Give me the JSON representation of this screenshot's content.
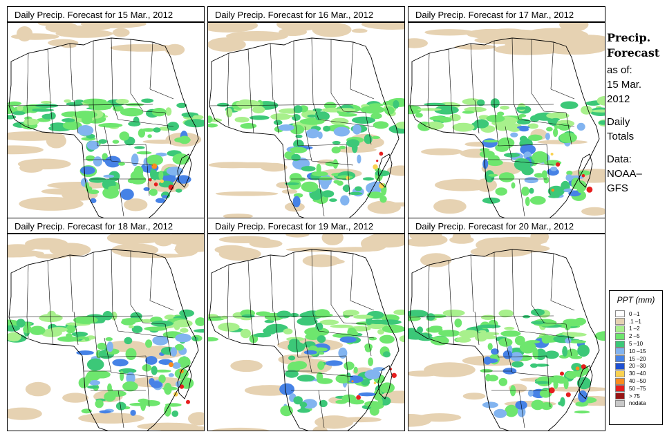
{
  "panels": [
    {
      "title": "Daily Precip. Forecast for  15 Mar., 2012"
    },
    {
      "title": "Daily Precip. Forecast for  16 Mar., 2012"
    },
    {
      "title": "Daily Precip. Forecast for  17 Mar., 2012"
    },
    {
      "title": "Daily Precip. Forecast for  18 Mar., 2012"
    },
    {
      "title": "Daily Precip. Forecast for  19 Mar., 2012"
    },
    {
      "title": "Daily Precip. Forecast for  20 Mar., 2012"
    }
  ],
  "sidebar": {
    "heading_line1": "Precip.",
    "heading_line2": "Forecast",
    "asof_label": "as of:",
    "date_line1": "15 Mar.",
    "date_line2": "2012",
    "type_line1": "Daily",
    "type_line2": "Totals",
    "source_line1": "Data:",
    "source_line2": "NOAA–",
    "source_line3": "GFS"
  },
  "legend": {
    "title": "PPT (mm)",
    "items": [
      {
        "label": "0 –1",
        "color": "#ffffff"
      },
      {
        "label": ".1 –1",
        "color": "#e6d2b2"
      },
      {
        "label": "1 –2",
        "color": "#a8f08c"
      },
      {
        "label": "2 –5",
        "color": "#6ee66e"
      },
      {
        "label": "5 –10",
        "color": "#3cc878"
      },
      {
        "label": "10 –15",
        "color": "#82b4f0"
      },
      {
        "label": "15 –20",
        "color": "#4682e6"
      },
      {
        "label": "20 –30",
        "color": "#1e50d2"
      },
      {
        "label": "30 –40",
        "color": "#fad250"
      },
      {
        "label": "40 –50",
        "color": "#fa8c1e"
      },
      {
        "label": "50 –75",
        "color": "#e61e1e"
      },
      {
        "label": "> 75",
        "color": "#961414"
      },
      {
        "label": "nodata",
        "color": "#c8c8c8"
      }
    ]
  }
}
